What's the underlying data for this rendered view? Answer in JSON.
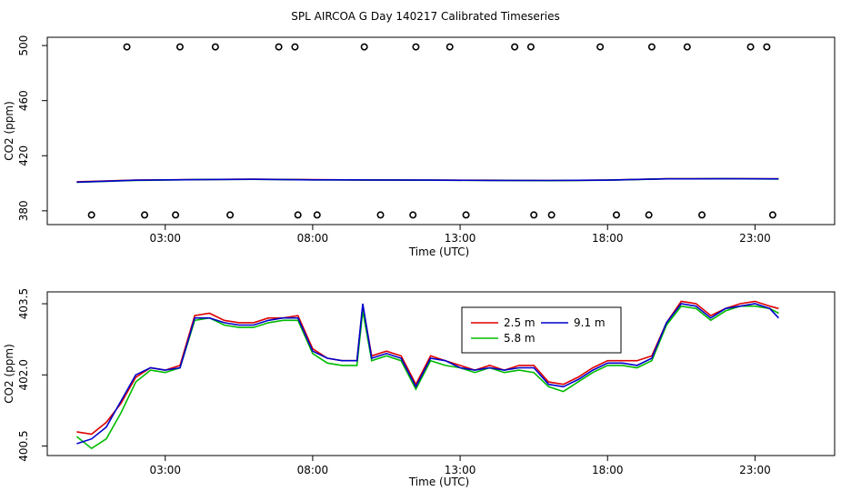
{
  "page_title": "SPL AIRCOA G  Day 140217  Calibrated Timeseries",
  "chart_data": [
    {
      "type": "line",
      "ylabel": "CO2 (ppm)",
      "xlabel": "Time (UTC)",
      "xlim": [
        -1.0,
        25.7
      ],
      "ylim": [
        370,
        506
      ],
      "x_ticks": [
        3,
        8,
        13,
        18,
        23
      ],
      "x_tick_labels": [
        "03:00",
        "08:00",
        "13:00",
        "18:00",
        "23:00"
      ],
      "y_ticks": [
        380,
        420,
        460,
        500
      ],
      "y_tick_labels": [
        "380",
        "420",
        "460",
        "500"
      ],
      "series": [
        {
          "name": "2.5 m",
          "color": "#dd0000",
          "x": [
            0.0,
            2.0,
            4.0,
            6.0,
            8.0,
            10.0,
            12.0,
            14.0,
            16.0,
            18.0,
            20.0,
            22.0,
            23.8
          ],
          "y": [
            401.1,
            402.3,
            402.7,
            403.0,
            402.6,
            402.4,
            402.3,
            402.2,
            402.0,
            402.3,
            403.3,
            403.4,
            403.2
          ]
        },
        {
          "name": "5.8 m",
          "color": "#00bb00",
          "x": [
            0.0,
            2.0,
            4.0,
            6.0,
            8.0,
            10.0,
            12.0,
            14.0,
            16.0,
            18.0,
            20.0,
            22.0,
            23.8
          ],
          "y": [
            400.7,
            402.1,
            402.6,
            402.9,
            402.5,
            402.3,
            402.2,
            402.1,
            401.9,
            402.2,
            403.2,
            403.3,
            403.1
          ]
        },
        {
          "name": "9.1 m",
          "color": "#0000cc",
          "x": [
            0.0,
            2.0,
            4.0,
            6.0,
            8.0,
            10.0,
            12.0,
            14.0,
            16.0,
            18.0,
            20.0,
            22.0,
            23.8
          ],
          "y": [
            400.8,
            402.2,
            402.6,
            402.9,
            402.5,
            402.4,
            402.3,
            402.1,
            402.0,
            402.3,
            403.2,
            403.3,
            403.2
          ]
        }
      ],
      "points": {
        "x": [
          1.7,
          3.5,
          4.7,
          6.85,
          7.4,
          9.75,
          11.5,
          12.65,
          14.85,
          15.4,
          17.75,
          19.5,
          20.7,
          22.85,
          23.4,
          0.5,
          2.3,
          3.35,
          5.2,
          7.5,
          8.15,
          10.3,
          11.4,
          13.2,
          15.5,
          16.1,
          18.3,
          19.4,
          21.2,
          23.6
        ],
        "y": [
          499,
          499,
          499,
          499,
          499,
          499,
          499,
          499,
          499,
          499,
          499,
          499,
          499,
          499,
          499,
          377,
          377,
          377,
          377,
          377,
          377,
          377,
          377,
          377,
          377,
          377,
          377,
          377,
          377,
          377
        ]
      }
    },
    {
      "type": "line",
      "ylabel": "CO2 (ppm)",
      "xlabel": "Time (UTC)",
      "xlim": [
        -1.0,
        25.7
      ],
      "ylim": [
        400.3,
        403.75
      ],
      "x_ticks": [
        3,
        8,
        13,
        18,
        23
      ],
      "x_tick_labels": [
        "03:00",
        "08:00",
        "13:00",
        "18:00",
        "23:00"
      ],
      "y_ticks": [
        400.5,
        402.0,
        403.5
      ],
      "y_tick_labels": [
        "400.5",
        "402.0",
        "403.5"
      ],
      "legend": {
        "position": "top-center",
        "entries": [
          "2.5 m",
          "9.1 m",
          "5.8 m"
        ]
      },
      "series": [
        {
          "name": "2.5 m",
          "color": "#dd0000",
          "x": [
            0.0,
            0.5,
            1.0,
            1.5,
            2.0,
            2.5,
            3.0,
            3.5,
            4.0,
            4.5,
            5.0,
            5.5,
            6.0,
            6.5,
            7.0,
            7.5,
            8.0,
            8.5,
            9.0,
            9.5,
            9.7,
            10.0,
            10.5,
            11.0,
            11.5,
            12.0,
            12.5,
            13.0,
            13.5,
            14.0,
            14.5,
            15.0,
            15.5,
            16.0,
            16.5,
            17.0,
            17.5,
            18.0,
            18.5,
            19.0,
            19.5,
            20.0,
            20.5,
            21.0,
            21.5,
            22.0,
            22.5,
            23.0,
            23.5,
            23.8
          ],
          "y": [
            400.8,
            400.75,
            401.0,
            401.4,
            401.95,
            402.15,
            402.1,
            402.2,
            403.25,
            403.3,
            403.15,
            403.1,
            403.1,
            403.2,
            403.2,
            403.25,
            402.55,
            402.35,
            402.3,
            402.3,
            403.45,
            402.4,
            402.5,
            402.4,
            401.8,
            402.4,
            402.3,
            402.2,
            402.1,
            402.2,
            402.1,
            402.2,
            402.2,
            401.85,
            401.8,
            401.95,
            402.15,
            402.3,
            402.3,
            402.3,
            402.4,
            403.1,
            403.55,
            403.5,
            403.25,
            403.4,
            403.5,
            403.55,
            403.45,
            403.4
          ]
        },
        {
          "name": "5.8 m",
          "color": "#00bb00",
          "x": [
            0.0,
            0.5,
            1.0,
            1.5,
            2.0,
            2.5,
            3.0,
            3.5,
            4.0,
            4.5,
            5.0,
            5.5,
            6.0,
            6.5,
            7.0,
            7.5,
            8.0,
            8.5,
            9.0,
            9.5,
            9.7,
            10.0,
            10.5,
            11.0,
            11.5,
            12.0,
            12.5,
            13.0,
            13.5,
            14.0,
            14.5,
            15.0,
            15.5,
            16.0,
            16.5,
            17.0,
            17.5,
            18.0,
            18.5,
            19.0,
            19.5,
            20.0,
            20.5,
            21.0,
            21.5,
            22.0,
            22.5,
            23.0,
            23.5,
            23.8
          ],
          "y": [
            400.7,
            400.45,
            400.65,
            401.2,
            401.85,
            402.1,
            402.05,
            402.15,
            403.15,
            403.2,
            403.05,
            403.0,
            403.0,
            403.1,
            403.15,
            403.15,
            402.45,
            402.25,
            402.2,
            402.2,
            403.35,
            402.3,
            402.4,
            402.3,
            401.7,
            402.3,
            402.2,
            402.15,
            402.05,
            402.15,
            402.05,
            402.1,
            402.05,
            401.75,
            401.65,
            401.85,
            402.05,
            402.2,
            402.2,
            402.15,
            402.3,
            403.05,
            403.45,
            403.4,
            403.15,
            403.35,
            403.45,
            403.45,
            403.4,
            403.3
          ]
        },
        {
          "name": "9.1 m",
          "color": "#0000cc",
          "x": [
            0.0,
            0.5,
            1.0,
            1.5,
            2.0,
            2.5,
            3.0,
            3.5,
            4.0,
            4.5,
            5.0,
            5.5,
            6.0,
            6.5,
            7.0,
            7.5,
            8.0,
            8.5,
            9.0,
            9.5,
            9.7,
            10.0,
            10.5,
            11.0,
            11.5,
            12.0,
            12.5,
            13.0,
            13.5,
            14.0,
            14.5,
            15.0,
            15.5,
            16.0,
            16.5,
            17.0,
            17.5,
            18.0,
            18.5,
            19.0,
            19.5,
            20.0,
            20.5,
            21.0,
            21.5,
            22.0,
            22.5,
            23.0,
            23.5,
            23.8
          ],
          "y": [
            400.55,
            400.65,
            400.9,
            401.45,
            402.0,
            402.15,
            402.1,
            402.15,
            403.2,
            403.2,
            403.1,
            403.05,
            403.05,
            403.15,
            403.2,
            403.2,
            402.5,
            402.35,
            402.3,
            402.3,
            403.5,
            402.35,
            402.45,
            402.35,
            401.75,
            402.35,
            402.3,
            402.15,
            402.1,
            402.15,
            402.1,
            402.15,
            402.15,
            401.8,
            401.75,
            401.9,
            402.1,
            402.25,
            402.25,
            402.2,
            402.35,
            403.1,
            403.5,
            403.45,
            403.2,
            403.4,
            403.45,
            403.5,
            403.4,
            403.2
          ]
        }
      ]
    }
  ]
}
